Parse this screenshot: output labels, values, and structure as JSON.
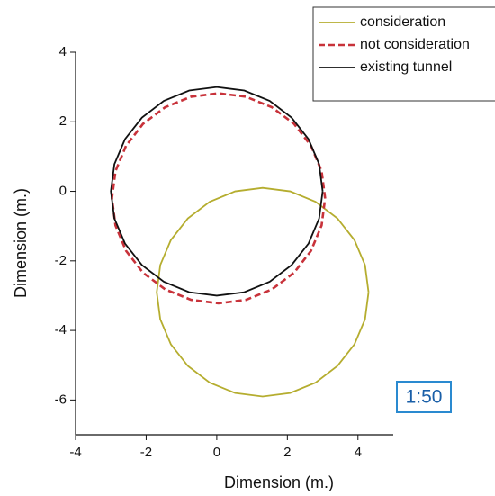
{
  "chart_data": {
    "type": "line",
    "x_label": "Dimension (m.)",
    "y_label": "Dimension (m.)",
    "xlim": [
      -4,
      5
    ],
    "ylim": [
      -7,
      4
    ],
    "xticks": [
      -4,
      -2,
      0,
      2,
      4
    ],
    "yticks": [
      -6,
      -4,
      -2,
      0,
      2,
      4
    ],
    "legend": "top-right",
    "annotation": "1:50",
    "series": [
      {
        "name": "consideration",
        "color": "#b5ad2f",
        "linestyle": "solid",
        "x": [
          4.3,
          4.2,
          3.9,
          3.42,
          2.8,
          2.08,
          1.3,
          0.52,
          -0.2,
          -0.82,
          -1.3,
          -1.6,
          -1.7,
          -1.6,
          -1.3,
          -0.82,
          -0.2,
          0.52,
          1.3,
          2.08,
          2.8,
          3.42,
          3.9,
          4.2,
          4.3
        ],
        "values": [
          -2.9,
          -2.12,
          -1.4,
          -0.78,
          -0.3,
          0,
          0.1,
          0,
          -0.3,
          -0.78,
          -1.4,
          -2.12,
          -2.9,
          -3.68,
          -4.4,
          -5.02,
          -5.5,
          -5.8,
          -5.9,
          -5.8,
          -5.5,
          -5.02,
          -4.4,
          -3.68,
          -2.9
        ]
      },
      {
        "name": "not consideration",
        "color": "#c8323a",
        "linestyle": "dashed",
        "x": [
          3.07,
          2.97,
          2.67,
          2.19,
          1.56,
          0.83,
          0.05,
          -0.73,
          -1.46,
          -2.09,
          -2.57,
          -2.87,
          -2.97,
          -2.87,
          -2.57,
          -2.09,
          -1.46,
          -0.73,
          0.05,
          0.83,
          1.56,
          2.19,
          2.67,
          2.97,
          3.07
        ],
        "values": [
          -0.2,
          0.58,
          1.31,
          1.94,
          2.42,
          2.72,
          2.82,
          2.72,
          2.42,
          1.94,
          1.31,
          0.58,
          -0.2,
          -0.98,
          -1.71,
          -2.34,
          -2.82,
          -3.12,
          -3.22,
          -3.12,
          -2.82,
          -2.34,
          -1.71,
          -0.98,
          -0.2
        ]
      },
      {
        "name": "existing tunnel",
        "color": "#111111",
        "linestyle": "solid",
        "x": [
          3,
          2.9,
          2.6,
          2.12,
          1.5,
          0.78,
          0,
          -0.78,
          -1.5,
          -2.12,
          -2.6,
          -2.9,
          -3,
          -2.9,
          -2.6,
          -2.12,
          -1.5,
          -0.78,
          0,
          0.78,
          1.5,
          2.12,
          2.6,
          2.9,
          3
        ],
        "values": [
          0,
          0.78,
          1.5,
          2.12,
          2.6,
          2.9,
          3,
          2.9,
          2.6,
          2.12,
          1.5,
          0.78,
          0,
          -0.78,
          -1.5,
          -2.12,
          -2.6,
          -2.9,
          -3,
          -2.9,
          -2.6,
          -2.12,
          -1.5,
          -0.78,
          0
        ]
      }
    ]
  }
}
